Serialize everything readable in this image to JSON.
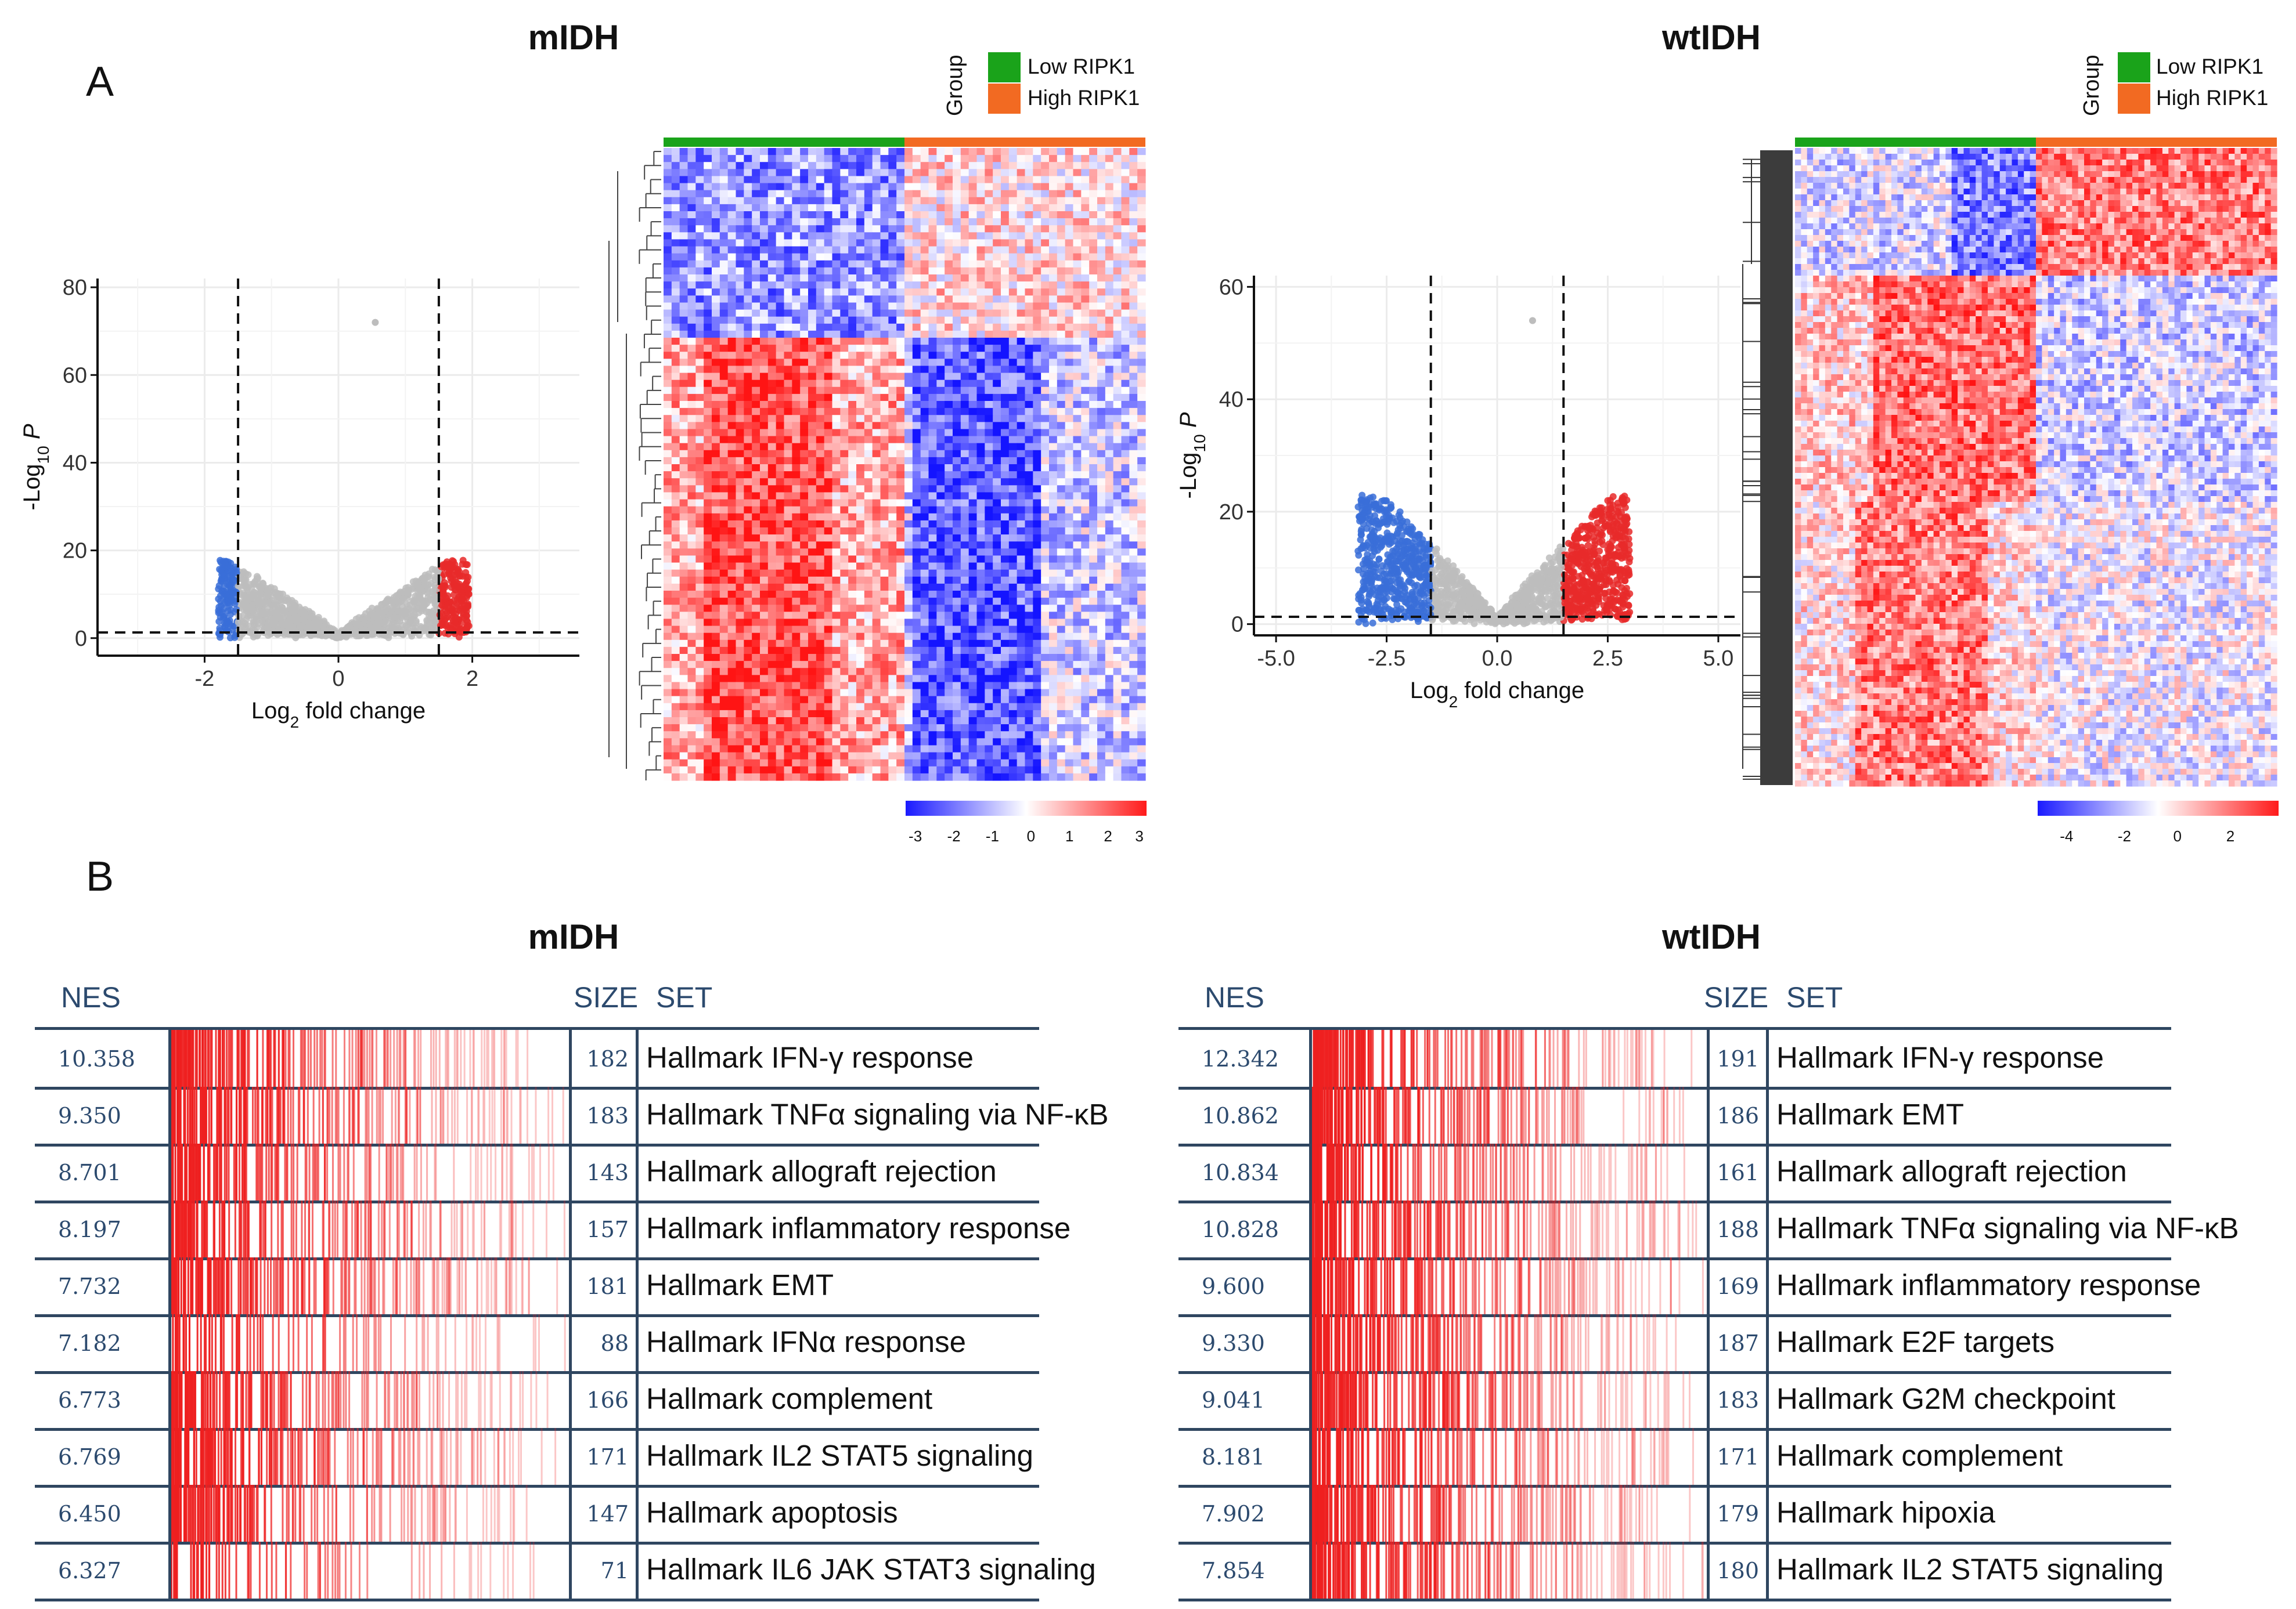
{
  "panel_a_label": "A",
  "panel_b_label": "B",
  "legend": {
    "title": "Group",
    "items": [
      {
        "label": "Low RIPK1",
        "color": "#1aa31a"
      },
      {
        "label": "High RIPK1",
        "color": "#f26a22"
      }
    ]
  },
  "colors": {
    "down": "#3a6fd8",
    "up": "#e82a2a",
    "ns": "#bdbdbd",
    "heat_low": "#1a1aff",
    "heat_high": "#ff1a1a"
  },
  "chart_data": [
    {
      "type": "scatter",
      "name": "volcano-mIDH",
      "title": "mIDH",
      "xlabel_base": "Log",
      "xlabel_sub": "2",
      "xlabel_rest": " fold change",
      "ylabel_pre": "-Log",
      "ylabel_sub": "10",
      "ylabel_post": " P",
      "xlim": [
        -3.6,
        3.6
      ],
      "ylim": [
        -4,
        82
      ],
      "xticks": [
        -2,
        0,
        2
      ],
      "yticks": [
        0,
        20,
        40,
        60,
        80
      ],
      "fc_cutoff": 1.5,
      "p_cutoff": 1.3,
      "outlier": {
        "x": 0.55,
        "y": 72
      }
    },
    {
      "type": "heatmap",
      "name": "heatmap-mIDH",
      "colorbar_ticks": [
        "-3",
        "-2",
        "-1",
        "0",
        "1",
        "2",
        "3"
      ]
    },
    {
      "type": "scatter",
      "name": "volcano-wtIDH",
      "title": "wtIDH",
      "xlabel_base": "Log",
      "xlabel_sub": "2",
      "xlabel_rest": " fold change",
      "ylabel_pre": "-Log",
      "ylabel_sub": "10",
      "ylabel_post": " P",
      "xlim": [
        -5.5,
        5.5
      ],
      "ylim": [
        -2,
        62
      ],
      "xticks": [
        -5.0,
        -2.5,
        0.0,
        2.5,
        5.0
      ],
      "xtick_labels": [
        "-5.0",
        "-2.5",
        "0.0",
        "2.5",
        "5.0"
      ],
      "yticks": [
        0,
        20,
        40,
        60
      ],
      "fc_cutoff": 1.5,
      "p_cutoff": 1.3,
      "outlier": {
        "x": 0.8,
        "y": 54
      }
    },
    {
      "type": "heatmap",
      "name": "heatmap-wtIDH",
      "colorbar_ticks": [
        "-4",
        "-2",
        "0",
        "2"
      ]
    },
    {
      "type": "table",
      "name": "gsea-mIDH",
      "title": "mIDH",
      "columns": [
        "NES",
        "SIZE",
        "SET"
      ],
      "rows": [
        {
          "nes": "10.358",
          "size": "182",
          "set": "Hallmark IFN-γ response"
        },
        {
          "nes": "9.350",
          "size": "183",
          "set": "Hallmark TNFα signaling via NF-κB"
        },
        {
          "nes": "8.701",
          "size": "143",
          "set": "Hallmark allograft rejection"
        },
        {
          "nes": "8.197",
          "size": "157",
          "set": "Hallmark inflammatory response"
        },
        {
          "nes": "7.732",
          "size": "181",
          "set": "Hallmark EMT"
        },
        {
          "nes": "7.182",
          "size": "88",
          "set": "Hallmark IFNα response"
        },
        {
          "nes": "6.773",
          "size": "166",
          "set": "Hallmark complement"
        },
        {
          "nes": "6.769",
          "size": "171",
          "set": "Hallmark IL2 STAT5 signaling"
        },
        {
          "nes": "6.450",
          "size": "147",
          "set": "Hallmark apoptosis"
        },
        {
          "nes": "6.327",
          "size": "71",
          "set": "Hallmark IL6 JAK STAT3 signaling"
        }
      ]
    },
    {
      "type": "table",
      "name": "gsea-wtIDH",
      "title": "wtIDH",
      "columns": [
        "NES",
        "SIZE",
        "SET"
      ],
      "rows": [
        {
          "nes": "12.342",
          "size": "191",
          "set": "Hallmark IFN-γ response"
        },
        {
          "nes": "10.862",
          "size": "186",
          "set": "Hallmark EMT"
        },
        {
          "nes": "10.834",
          "size": "161",
          "set": "Hallmark allograft rejection"
        },
        {
          "nes": "10.828",
          "size": "188",
          "set": "Hallmark TNFα signaling via NF-κB"
        },
        {
          "nes": "9.600",
          "size": "169",
          "set": "Hallmark inflammatory response"
        },
        {
          "nes": "9.330",
          "size": "187",
          "set": "Hallmark E2F targets"
        },
        {
          "nes": "9.041",
          "size": "183",
          "set": "Hallmark G2M checkpoint"
        },
        {
          "nes": "8.181",
          "size": "171",
          "set": "Hallmark complement"
        },
        {
          "nes": "7.902",
          "size": "179",
          "set": "Hallmark hipoxia"
        },
        {
          "nes": "7.854",
          "size": "180",
          "set": "Hallmark IL2 STAT5 signaling"
        }
      ]
    }
  ]
}
